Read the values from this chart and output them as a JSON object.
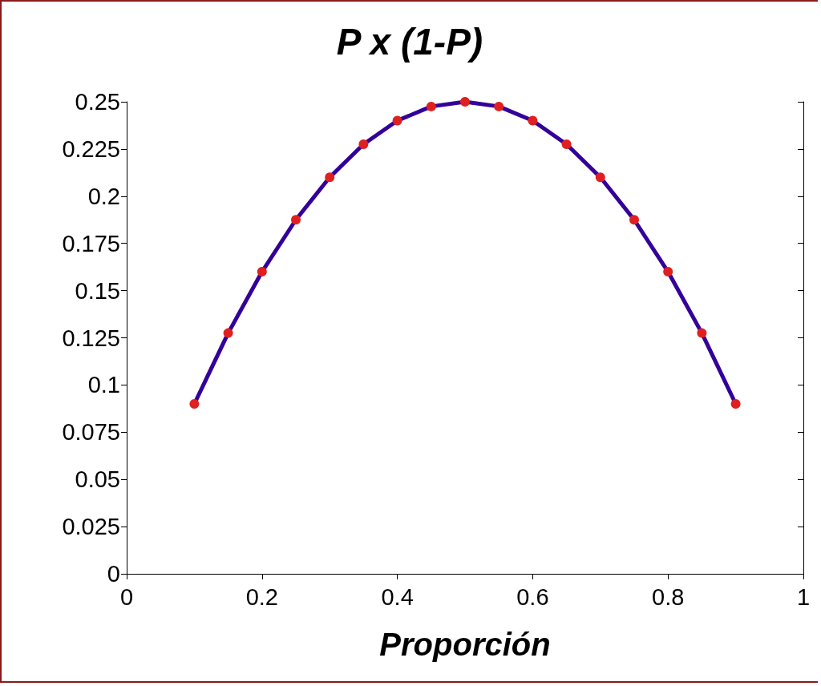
{
  "chart_data": {
    "type": "line",
    "title": "P x (1-P)",
    "xlabel": "Proporción",
    "series": [
      {
        "color": "#330099",
        "colors": [
          "#e02020",
          "#e02020",
          "#e02020",
          "#e02020",
          "#e02020",
          "#e02020",
          "#e02020",
          "#e02020",
          "#e02020",
          "#e02020",
          "#e02020",
          "#e02020",
          "#e02020",
          "#e02020",
          "#e02020",
          "#e02020",
          "#e02020"
        ],
        "x": [
          0.1,
          0.15,
          0.2,
          0.25,
          0.3,
          0.35,
          0.4,
          0.45,
          0.5,
          0.55,
          0.6,
          0.65,
          0.7,
          0.75,
          0.8,
          0.85,
          0.9
        ],
        "values": [
          0.09,
          0.1275,
          0.16,
          0.1875,
          0.21,
          0.2275,
          0.24,
          0.2475,
          0.25,
          0.2475,
          0.24,
          0.2275,
          0.21,
          0.1875,
          0.16,
          0.1275,
          0.09
        ]
      }
    ],
    "xlim": [
      0,
      1
    ],
    "xticks": [
      0,
      0.2,
      0.4,
      0.6,
      0.8,
      1
    ],
    "ylim": [
      0,
      0.25
    ],
    "yticks": [
      0,
      0.025,
      0.05,
      0.075,
      0.1,
      0.125,
      0.15,
      0.175,
      0.2,
      0.225,
      0.25
    ],
    "grid": false,
    "marker": "circle",
    "line_style": "solid"
  }
}
